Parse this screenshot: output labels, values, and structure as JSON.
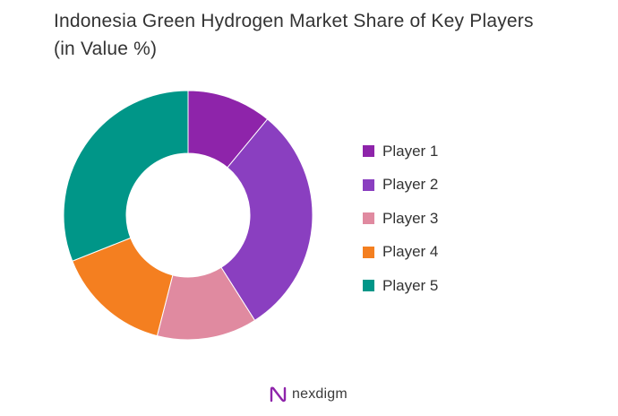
{
  "chart_data": {
    "type": "pie",
    "title": "Indonesia Green Hydrogen Market Share of Key Players (in Value %)",
    "labels": [
      "Player 1",
      "Player 2",
      "Player 3",
      "Player 4",
      "Player 5"
    ],
    "values": [
      11,
      30,
      13,
      15,
      31
    ],
    "colors": [
      "#8e24aa",
      "#8a3fc0",
      "#e08aa0",
      "#f47f20",
      "#009688"
    ],
    "donut": true,
    "legend": "right",
    "start_angle_deg": 0,
    "direction": "clockwise"
  },
  "brand": {
    "name": "nexdigm",
    "logo_icon": "nexdigm-logo-icon",
    "logo_color": "#8e24aa"
  }
}
